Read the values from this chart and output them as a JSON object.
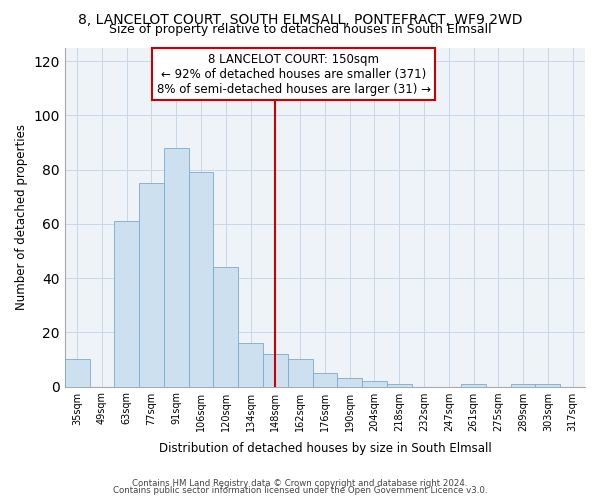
{
  "title": "8, LANCELOT COURT, SOUTH ELMSALL, PONTEFRACT, WF9 2WD",
  "subtitle": "Size of property relative to detached houses in South Elmsall",
  "xlabel": "Distribution of detached houses by size in South Elmsall",
  "ylabel": "Number of detached properties",
  "bar_color": "#cde0f0",
  "bar_edge_color": "#7aabcc",
  "categories": [
    "35sqm",
    "49sqm",
    "63sqm",
    "77sqm",
    "91sqm",
    "106sqm",
    "120sqm",
    "134sqm",
    "148sqm",
    "162sqm",
    "176sqm",
    "190sqm",
    "204sqm",
    "218sqm",
    "232sqm",
    "247sqm",
    "261sqm",
    "275sqm",
    "289sqm",
    "303sqm",
    "317sqm"
  ],
  "values": [
    10,
    0,
    61,
    75,
    88,
    79,
    44,
    16,
    12,
    10,
    5,
    3,
    2,
    1,
    0,
    0,
    1,
    0,
    1,
    1,
    0
  ],
  "vline_index": 8,
  "vline_color": "#cc0000",
  "annotation_title": "8 LANCELOT COURT: 150sqm",
  "annotation_line1": "← 92% of detached houses are smaller (371)",
  "annotation_line2": "8% of semi-detached houses are larger (31) →",
  "annotation_box_edge": "#cc0000",
  "ylim": [
    0,
    125
  ],
  "yticks": [
    0,
    20,
    40,
    60,
    80,
    100,
    120
  ],
  "footer1": "Contains HM Land Registry data © Crown copyright and database right 2024.",
  "footer2": "Contains public sector information licensed under the Open Government Licence v3.0.",
  "plot_bg_color": "#eef3f8",
  "grid_color": "#c8d8e8",
  "title_fontsize": 10,
  "subtitle_fontsize": 9
}
